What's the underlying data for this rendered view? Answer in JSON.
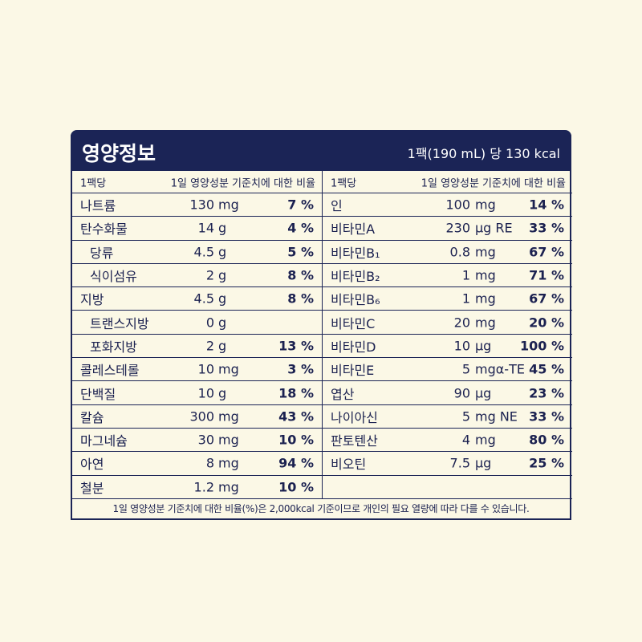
{
  "header": {
    "title": "영양정보",
    "serving": "1팩(190 mL) 당 130 kcal"
  },
  "columns": [
    {
      "head_name": "1팩당",
      "head_pct": "1일 영양성분 기준치에 대한 비율",
      "rows": [
        {
          "name": "나트륨",
          "amount": "130",
          "unit": "mg",
          "pct": "7 %"
        },
        {
          "name": "탄수화물",
          "amount": "14",
          "unit": "g",
          "pct": "4 %"
        },
        {
          "name": "당류",
          "amount": "4.5",
          "unit": "g",
          "pct": "5 %"
        },
        {
          "name": "식이섬유",
          "amount": "2",
          "unit": "g",
          "pct": "8 %"
        },
        {
          "name": "지방",
          "amount": "4.5",
          "unit": "g",
          "pct": "8 %"
        },
        {
          "name": "트랜스지방",
          "amount": "0",
          "unit": "g"
        },
        {
          "name": "포화지방",
          "amount": "2",
          "unit": "g",
          "pct": "13 %"
        },
        {
          "name": "콜레스테롤",
          "amount": "10",
          "unit": "mg",
          "pct": "3 %"
        },
        {
          "name": "단백질",
          "amount": "10",
          "unit": "g",
          "pct": "18 %"
        },
        {
          "name": "칼슘",
          "amount": "300",
          "unit": "mg",
          "pct": "43 %"
        },
        {
          "name": "마그네슘",
          "amount": "30",
          "unit": "mg",
          "pct": "10 %"
        },
        {
          "name": "아연",
          "amount": "8",
          "unit": "mg",
          "pct": "94 %"
        },
        {
          "name": "철분",
          "amount": "1.2",
          "unit": "mg",
          "pct": "10 %"
        }
      ]
    },
    {
      "head_name": "1팩당",
      "head_pct": "1일 영양성분 기준치에 대한 비율",
      "rows": [
        {
          "name": "인",
          "amount": "100",
          "unit": "mg",
          "pct": "14 %"
        },
        {
          "name": "비타민A",
          "amount": "230",
          "unit": "μg RE",
          "pct": "33 %"
        },
        {
          "name": "비타민B₁",
          "amount": "0.8",
          "unit": "mg",
          "pct": "67 %"
        },
        {
          "name": "비타민B₂",
          "amount": "1",
          "unit": "mg",
          "pct": "71 %"
        },
        {
          "name": "비타민B₆",
          "amount": "1",
          "unit": "mg",
          "pct": "67 %"
        },
        {
          "name": "비타민C",
          "amount": "20",
          "unit": "mg",
          "pct": "20 %"
        },
        {
          "name": "비타민D",
          "amount": "10",
          "unit": "μg",
          "pct": "100 %"
        },
        {
          "name": "비타민E",
          "amount": "5",
          "unit": "mgα-TE",
          "pct": "45 %"
        },
        {
          "name": "엽산",
          "amount": "90",
          "unit": "μg",
          "pct": "23 %"
        },
        {
          "name": "나이아신",
          "amount": "5",
          "unit": "mg NE",
          "pct": "33 %"
        },
        {
          "name": "판토텐산",
          "amount": "4",
          "unit": "mg",
          "pct": "80 %"
        },
        {
          "name": "비오틴",
          "amount": "7.5",
          "unit": "μg",
          "pct": "25 %"
        }
      ]
    }
  ],
  "footnote": "1일 영양성분 기준치에 대한 비율(%)은 2,000kcal 기준이므로 개인의 필요 열량에 따라 다를 수 있습니다."
}
